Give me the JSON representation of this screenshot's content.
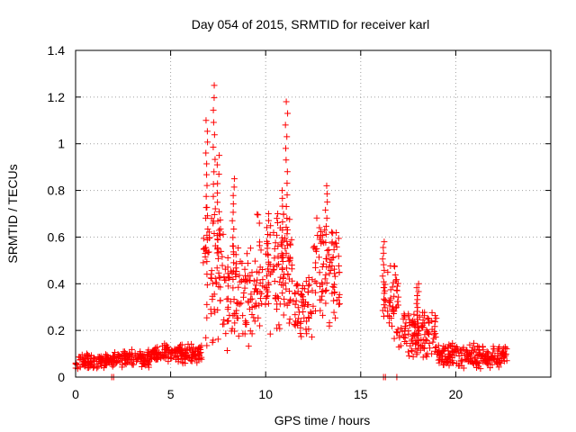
{
  "chart_data": {
    "type": "scatter",
    "title": "Day 054 of 2015, SRMTID for receiver karl",
    "xlabel": "GPS time / hours",
    "ylabel": "SRMTID / TECUs",
    "xlim": [
      0,
      25
    ],
    "ylim": [
      0,
      1.4
    ],
    "x_ticks": [
      0,
      5,
      10,
      15,
      20
    ],
    "x_tick_labels": [
      "0",
      "5",
      "10",
      "15",
      "20"
    ],
    "y_ticks": [
      0,
      0.2,
      0.4,
      0.6,
      0.8,
      1.0,
      1.2,
      1.4
    ],
    "y_tick_labels": [
      "0",
      "0.2",
      "0.4",
      "0.6",
      "0.8",
      "1",
      "1.2",
      "1.4"
    ],
    "grid": true,
    "marker": "plus",
    "marker_color": "#ff0000",
    "series": [
      {
        "name": "SRMTID",
        "segments": [
          {
            "x_start": 0.0,
            "x_end": 2.0,
            "y_base": 0.07,
            "y_spread": 0.04
          },
          {
            "x_start": 2.0,
            "x_end": 4.0,
            "y_base": 0.08,
            "y_spread": 0.04
          },
          {
            "x_start": 4.0,
            "x_end": 6.7,
            "y_base": 0.1,
            "y_spread": 0.05
          },
          {
            "x_start": 6.7,
            "x_end": 7.8,
            "y_base": 0.45,
            "y_spread": 0.35
          },
          {
            "x_start": 7.8,
            "x_end": 9.5,
            "y_base": 0.35,
            "y_spread": 0.25
          },
          {
            "x_start": 9.5,
            "x_end": 11.5,
            "y_base": 0.45,
            "y_spread": 0.3
          },
          {
            "x_start": 11.5,
            "x_end": 12.5,
            "y_base": 0.3,
            "y_spread": 0.15
          },
          {
            "x_start": 12.5,
            "x_end": 13.9,
            "y_base": 0.45,
            "y_spread": 0.25
          },
          {
            "x_start": 16.2,
            "x_end": 17.0,
            "y_base": 0.3,
            "y_spread": 0.2
          },
          {
            "x_start": 17.0,
            "x_end": 19.0,
            "y_base": 0.18,
            "y_spread": 0.12
          },
          {
            "x_start": 19.0,
            "x_end": 22.7,
            "y_base": 0.09,
            "y_spread": 0.06
          }
        ],
        "peaks": [
          {
            "x": 6.9,
            "y": 1.1
          },
          {
            "x": 7.3,
            "y": 1.25
          },
          {
            "x": 7.5,
            "y": 0.95
          },
          {
            "x": 8.3,
            "y": 0.85
          },
          {
            "x": 10.1,
            "y": 0.7
          },
          {
            "x": 10.9,
            "y": 0.8
          },
          {
            "x": 11.1,
            "y": 1.18
          },
          {
            "x": 13.2,
            "y": 0.82
          },
          {
            "x": 16.2,
            "y": 0.58
          },
          {
            "x": 18.0,
            "y": 0.4
          }
        ],
        "zero_points": [
          1.9,
          2.0,
          16.2,
          16.3,
          16.9
        ]
      }
    ]
  }
}
